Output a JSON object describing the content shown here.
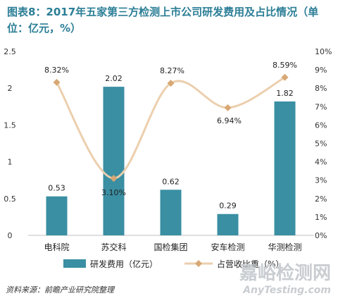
{
  "title_lines": [
    "图表8：2017年五家第三方检测上市公司研发费用及占比情况（单",
    "位：亿元，%）"
  ],
  "source": "资料来源：前瞻产业研究院整理",
  "watermark": {
    "site": "嘉峪检测网",
    "url": "AnyTesting.com"
  },
  "colors": {
    "bar": "#3a8fa3",
    "line": "#eccfae",
    "marker": "#d8a874",
    "title": "#2b7e96"
  },
  "chart_data": {
    "type": "bar",
    "categories": [
      "电科院",
      "苏交科",
      "国检集团",
      "安车检测",
      "华测检测"
    ],
    "series": [
      {
        "name": "研发费用（亿元）",
        "type": "bar",
        "axis": "left",
        "values": [
          0.53,
          2.02,
          0.62,
          0.29,
          1.82
        ],
        "labels": [
          "0.53",
          "2.02",
          "0.62",
          "0.29",
          "1.82"
        ]
      },
      {
        "name": "占营收比重（%）",
        "type": "line",
        "axis": "right",
        "values": [
          8.32,
          3.1,
          8.27,
          6.94,
          8.59
        ],
        "labels": [
          "8.32%",
          "3.10%",
          "8.27%",
          "6.94%",
          "8.59%"
        ]
      }
    ],
    "y_left": {
      "range": [
        0,
        2.5
      ],
      "ticks": [
        "0",
        "0.5",
        "1",
        "1.5",
        "2",
        "2.5"
      ]
    },
    "y_right": {
      "range": [
        0,
        10
      ],
      "ticks": [
        "0%",
        "1%",
        "2%",
        "3%",
        "4%",
        "5%",
        "6%",
        "7%",
        "8%",
        "9%",
        "10%"
      ]
    },
    "legend": "bottom",
    "grid": false
  }
}
